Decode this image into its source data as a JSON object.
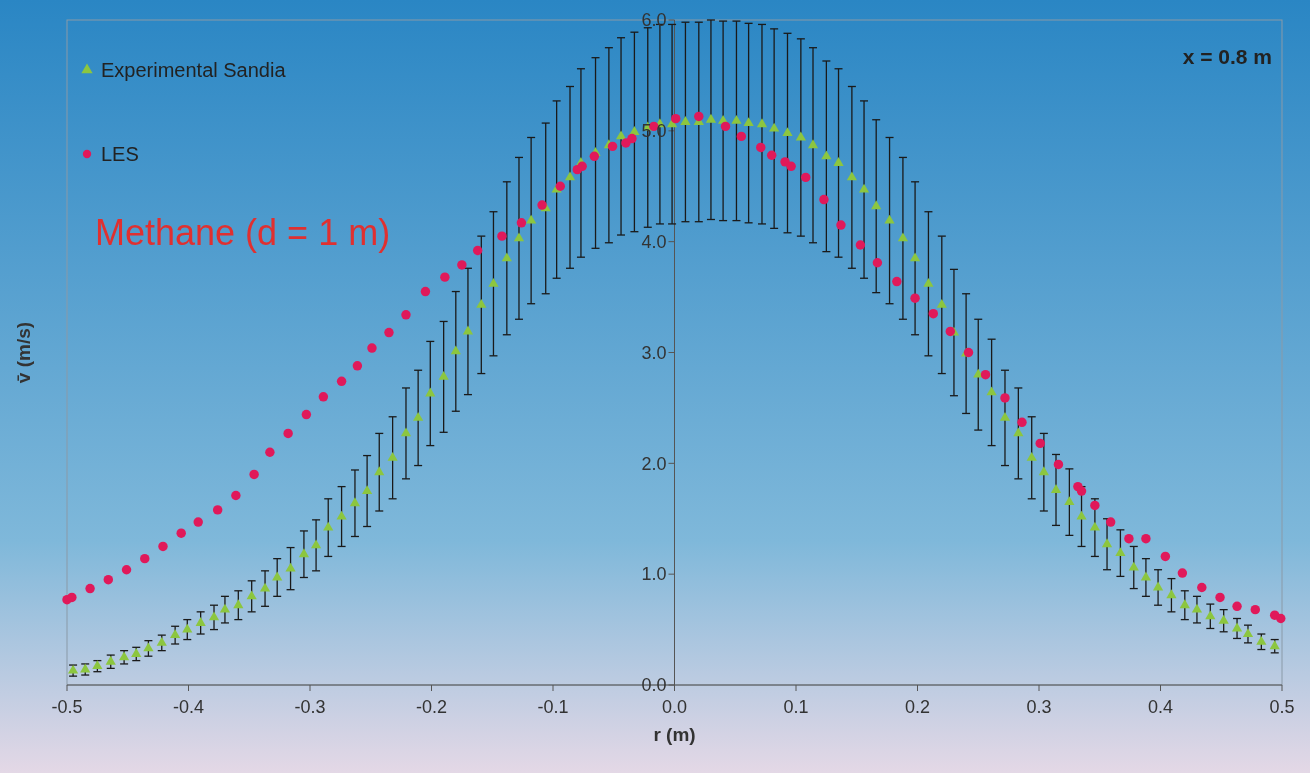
{
  "chart_data": {
    "type": "scatter",
    "xlabel": "r (m)",
    "ylabel": "v̄ (m/s)",
    "annotations": [
      "Methane (d = 1 m)",
      "x = 0.8 m"
    ],
    "xlim": [
      -0.5,
      0.5
    ],
    "xticks": [
      -0.5,
      -0.4,
      -0.3,
      -0.2,
      -0.1,
      {
        "value": 0,
        "label": "0.0"
      },
      0.1,
      0.2,
      0.3,
      0.4,
      0.5
    ],
    "ylim": [
      0,
      6
    ],
    "yticks": [
      {
        "value": 0,
        "label": "0.0"
      },
      {
        "value": 1,
        "label": "1.0"
      },
      {
        "value": 2,
        "label": "2.0"
      },
      {
        "value": 3,
        "label": "3.0"
      },
      {
        "value": 4,
        "label": "4.0"
      },
      {
        "value": 5,
        "label": "5.0"
      },
      {
        "value": 6,
        "label": "6.0"
      }
    ],
    "grid": false,
    "legend": "top left",
    "series": [
      {
        "name": "Experimental Sandia",
        "color": "#8cc63f",
        "marker": "triangle",
        "x": [
          -0.495,
          -0.485,
          -0.475,
          -0.464,
          -0.453,
          -0.443,
          -0.433,
          -0.422,
          -0.411,
          -0.401,
          -0.39,
          -0.379,
          -0.37,
          -0.359,
          -0.348,
          -0.337,
          -0.327,
          -0.316,
          -0.305,
          -0.295,
          -0.285,
          -0.274,
          -0.263,
          -0.253,
          -0.243,
          -0.232,
          -0.221,
          -0.211,
          -0.201,
          -0.19,
          -0.18,
          -0.17,
          -0.159,
          -0.149,
          -0.138,
          -0.128,
          -0.118,
          -0.106,
          -0.097,
          -0.086,
          -0.077,
          -0.065,
          -0.054,
          -0.044,
          -0.033,
          -0.022,
          -0.012,
          -0.002,
          0.009,
          0.02,
          0.03,
          0.04,
          0.051,
          0.061,
          0.072,
          0.082,
          0.093,
          0.104,
          0.114,
          0.125,
          0.135,
          0.146,
          0.156,
          0.166,
          0.177,
          0.188,
          0.198,
          0.209,
          0.22,
          0.23,
          0.24,
          0.25,
          0.261,
          0.272,
          0.283,
          0.294,
          0.304,
          0.314,
          0.325,
          0.335,
          0.346,
          0.356,
          0.367,
          0.378,
          0.388,
          0.398,
          0.409,
          0.42,
          0.43,
          0.441,
          0.452,
          0.463,
          0.472,
          0.483,
          0.494
        ],
        "values": [
          0.13,
          0.14,
          0.17,
          0.21,
          0.25,
          0.28,
          0.33,
          0.38,
          0.45,
          0.5,
          0.56,
          0.61,
          0.68,
          0.72,
          0.8,
          0.87,
          0.97,
          1.05,
          1.18,
          1.26,
          1.42,
          1.52,
          1.64,
          1.75,
          1.92,
          2.05,
          2.27,
          2.41,
          2.63,
          2.78,
          3.01,
          3.19,
          3.43,
          3.62,
          3.85,
          4.03,
          4.19,
          4.3,
          4.47,
          4.58,
          4.71,
          4.8,
          4.87,
          4.95,
          4.99,
          5.03,
          5.06,
          5.06,
          5.08,
          5.08,
          5.1,
          5.09,
          5.09,
          5.07,
          5.06,
          5.02,
          4.98,
          4.94,
          4.87,
          4.77,
          4.71,
          4.58,
          4.47,
          4.32,
          4.19,
          4.03,
          3.85,
          3.62,
          3.43,
          3.18,
          2.99,
          2.8,
          2.64,
          2.41,
          2.27,
          2.05,
          1.92,
          1.76,
          1.65,
          1.52,
          1.42,
          1.27,
          1.19,
          1.06,
          0.97,
          0.88,
          0.81,
          0.72,
          0.68,
          0.62,
          0.58,
          0.51,
          0.46,
          0.39,
          0.35
        ],
        "errors": [
          0.05,
          0.05,
          0.05,
          0.06,
          0.06,
          0.06,
          0.07,
          0.07,
          0.08,
          0.09,
          0.1,
          0.11,
          0.12,
          0.13,
          0.14,
          0.16,
          0.17,
          0.19,
          0.21,
          0.23,
          0.26,
          0.27,
          0.3,
          0.32,
          0.35,
          0.37,
          0.41,
          0.43,
          0.47,
          0.5,
          0.54,
          0.57,
          0.62,
          0.65,
          0.69,
          0.73,
          0.75,
          0.77,
          0.8,
          0.82,
          0.85,
          0.86,
          0.88,
          0.89,
          0.9,
          0.9,
          0.9,
          0.9,
          0.9,
          0.9,
          0.9,
          0.9,
          0.9,
          0.9,
          0.9,
          0.9,
          0.9,
          0.89,
          0.88,
          0.86,
          0.85,
          0.82,
          0.8,
          0.78,
          0.75,
          0.73,
          0.69,
          0.65,
          0.62,
          0.57,
          0.54,
          0.5,
          0.48,
          0.43,
          0.41,
          0.37,
          0.35,
          0.32,
          0.3,
          0.27,
          0.26,
          0.23,
          0.21,
          0.19,
          0.17,
          0.16,
          0.15,
          0.13,
          0.12,
          0.11,
          0.1,
          0.09,
          0.08,
          0.07,
          0.06
        ]
      },
      {
        "name": "LES",
        "color": "#e0195a",
        "marker": "circle",
        "x": [
          -0.5,
          -0.496,
          -0.481,
          -0.466,
          -0.451,
          -0.436,
          -0.421,
          -0.406,
          -0.392,
          -0.376,
          -0.361,
          -0.346,
          -0.333,
          -0.318,
          -0.303,
          -0.289,
          -0.274,
          -0.261,
          -0.249,
          -0.235,
          -0.221,
          -0.205,
          -0.189,
          -0.175,
          -0.162,
          -0.142,
          -0.126,
          -0.109,
          -0.094,
          -0.08,
          -0.076,
          -0.066,
          -0.051,
          -0.04,
          -0.035,
          -0.017,
          0.001,
          0.02,
          0.042,
          0.055,
          0.071,
          0.08,
          0.091,
          0.096,
          0.108,
          0.123,
          0.137,
          0.153,
          0.167,
          0.183,
          0.198,
          0.213,
          0.227,
          0.242,
          0.256,
          0.272,
          0.286,
          0.301,
          0.316,
          0.332,
          0.335,
          0.346,
          0.359,
          0.374,
          0.388,
          0.404,
          0.418,
          0.434,
          0.449,
          0.463,
          0.478,
          0.494,
          0.499
        ],
        "values": [
          0.77,
          0.79,
          0.87,
          0.95,
          1.04,
          1.14,
          1.25,
          1.37,
          1.47,
          1.58,
          1.71,
          1.9,
          2.1,
          2.27,
          2.44,
          2.6,
          2.74,
          2.88,
          3.04,
          3.18,
          3.34,
          3.55,
          3.68,
          3.79,
          3.92,
          4.05,
          4.17,
          4.33,
          4.5,
          4.65,
          4.68,
          4.77,
          4.86,
          4.89,
          4.93,
          5.04,
          5.11,
          5.13,
          5.04,
          4.95,
          4.85,
          4.78,
          4.72,
          4.68,
          4.58,
          4.38,
          4.15,
          3.97,
          3.81,
          3.64,
          3.49,
          3.35,
          3.19,
          3.0,
          2.8,
          2.59,
          2.37,
          2.18,
          1.99,
          1.79,
          1.75,
          1.62,
          1.47,
          1.32,
          1.32,
          1.16,
          1.01,
          0.88,
          0.79,
          0.71,
          0.68,
          0.63,
          0.6
        ]
      }
    ]
  }
}
